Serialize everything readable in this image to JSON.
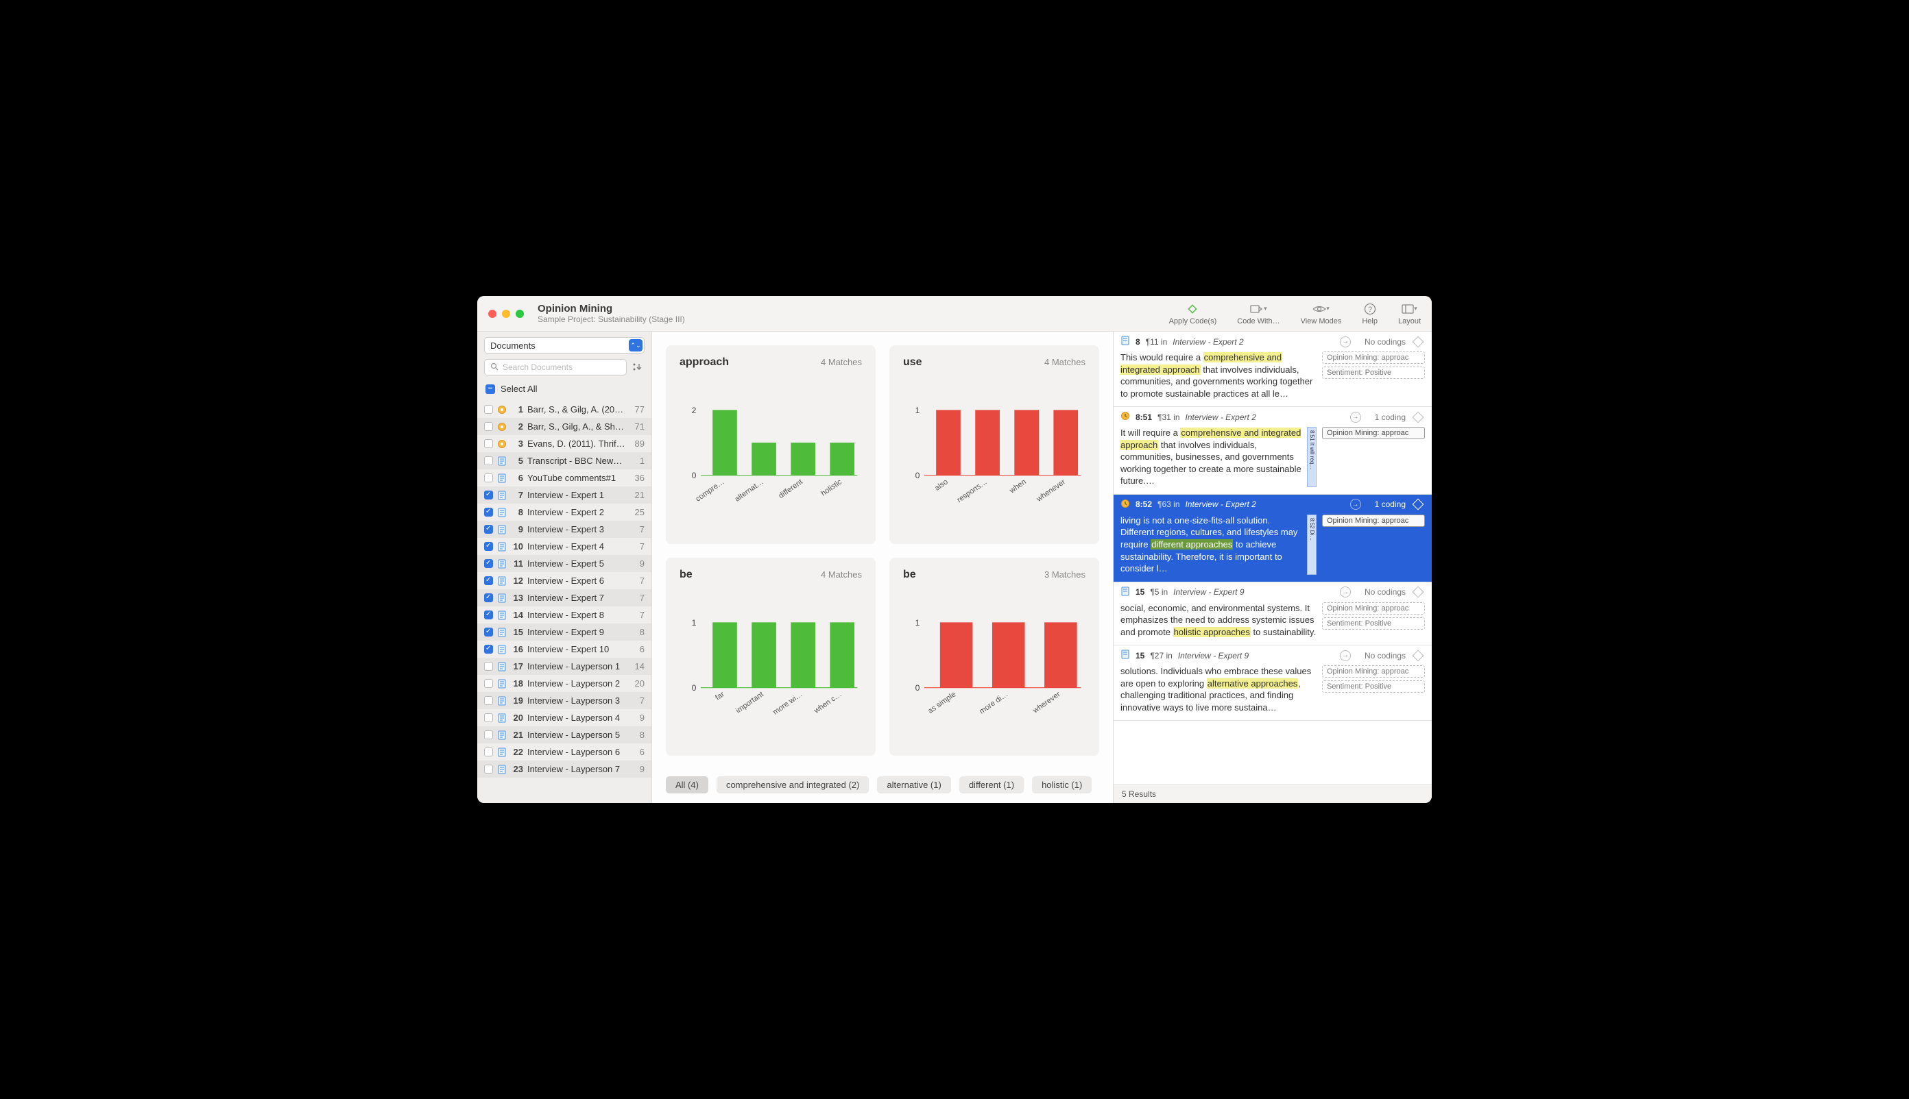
{
  "window": {
    "title": "Opinion Mining",
    "subtitle": "Sample Project: Sustainability (Stage III)"
  },
  "toolbar": {
    "apply": "Apply Code(s)",
    "codewith": "Code With…",
    "viewmodes": "View Modes",
    "help": "Help",
    "layout": "Layout"
  },
  "sidebar": {
    "selector": "Documents",
    "search_placeholder": "Search Documents",
    "select_all": "Select All",
    "docs": [
      {
        "n": "1",
        "name": "Barr, S., & Gilg, A. (200…",
        "count": "77",
        "checked": false,
        "icon": "ref"
      },
      {
        "n": "2",
        "name": "Barr, S., Gilg, A., & Shaw…",
        "count": "71",
        "checked": false,
        "icon": "ref"
      },
      {
        "n": "3",
        "name": "Evans, D. (2011). Thrifty,…",
        "count": "89",
        "checked": false,
        "icon": "ref"
      },
      {
        "n": "5",
        "name": "Transcript - BBC News. (…",
        "count": "1",
        "checked": false,
        "icon": "doc"
      },
      {
        "n": "6",
        "name": "YouTube comments#1",
        "count": "36",
        "checked": false,
        "icon": "doc"
      },
      {
        "n": "7",
        "name": "Interview - Expert 1",
        "count": "21",
        "checked": true,
        "icon": "doc"
      },
      {
        "n": "8",
        "name": "Interview - Expert 2",
        "count": "25",
        "checked": true,
        "icon": "doc"
      },
      {
        "n": "9",
        "name": "Interview - Expert 3",
        "count": "7",
        "checked": true,
        "icon": "doc"
      },
      {
        "n": "10",
        "name": "Interview - Expert 4",
        "count": "7",
        "checked": true,
        "icon": "doc"
      },
      {
        "n": "11",
        "name": "Interview - Expert 5",
        "count": "9",
        "checked": true,
        "icon": "doc"
      },
      {
        "n": "12",
        "name": "Interview - Expert 6",
        "count": "7",
        "checked": true,
        "icon": "doc"
      },
      {
        "n": "13",
        "name": "Interview - Expert 7",
        "count": "7",
        "checked": true,
        "icon": "doc"
      },
      {
        "n": "14",
        "name": "Interview - Expert 8",
        "count": "7",
        "checked": true,
        "icon": "doc"
      },
      {
        "n": "15",
        "name": "Interview - Expert 9",
        "count": "8",
        "checked": true,
        "icon": "doc"
      },
      {
        "n": "16",
        "name": "Interview - Expert 10",
        "count": "6",
        "checked": true,
        "icon": "doc"
      },
      {
        "n": "17",
        "name": "Interview - Layperson 1",
        "count": "14",
        "checked": false,
        "icon": "doc"
      },
      {
        "n": "18",
        "name": "Interview - Layperson 2",
        "count": "20",
        "checked": false,
        "icon": "doc"
      },
      {
        "n": "19",
        "name": "Interview - Layperson 3",
        "count": "7",
        "checked": false,
        "icon": "doc"
      },
      {
        "n": "20",
        "name": "Interview - Layperson 4",
        "count": "9",
        "checked": false,
        "icon": "doc"
      },
      {
        "n": "21",
        "name": "Interview - Layperson 5",
        "count": "8",
        "checked": false,
        "icon": "doc"
      },
      {
        "n": "22",
        "name": "Interview - Layperson 6",
        "count": "6",
        "checked": false,
        "icon": "doc"
      },
      {
        "n": "23",
        "name": "Interview - Layperson 7",
        "count": "9",
        "checked": false,
        "icon": "doc"
      }
    ]
  },
  "charts": [
    {
      "title": "approach",
      "matches": "4 Matches",
      "type": "bar",
      "categories": [
        "compre…",
        "alternat…",
        "different",
        "holistic"
      ],
      "values": [
        2,
        1,
        1,
        1
      ],
      "ymax": 2,
      "ytick": 2,
      "bar_color": "#4fbb3a",
      "axis_color": "#888",
      "bg": "#f4f2f0"
    },
    {
      "title": "use",
      "matches": "4 Matches",
      "type": "bar",
      "categories": [
        "also",
        "respons…",
        "when",
        "whenever"
      ],
      "values": [
        1,
        1,
        1,
        1
      ],
      "ymax": 1,
      "ytick": 1,
      "bar_color": "#e8493e",
      "axis_color": "#888",
      "bg": "#f4f2f0"
    },
    {
      "title": "be",
      "matches": "4 Matches",
      "type": "bar",
      "categories": [
        "far",
        "important",
        "more wi…",
        "when c…"
      ],
      "values": [
        1,
        1,
        1,
        1
      ],
      "ymax": 1,
      "ytick": 1,
      "bar_color": "#4fbb3a",
      "axis_color": "#888",
      "bg": "#f4f2f0"
    },
    {
      "title": "be",
      "matches": "3 Matches",
      "type": "bar",
      "categories": [
        "as simple",
        "more di…",
        "wherever"
      ],
      "values": [
        1,
        1,
        1
      ],
      "ymax": 1,
      "ytick": 1,
      "bar_color": "#e8493e",
      "axis_color": "#888",
      "bg": "#f4f2f0"
    }
  ],
  "filters": [
    {
      "label": "All (4)",
      "active": true
    },
    {
      "label": "comprehensive and integrated (2)",
      "active": false
    },
    {
      "label": "alternative (1)",
      "active": false
    },
    {
      "label": "different (1)",
      "active": false
    },
    {
      "label": "holistic (1)",
      "active": false
    }
  ],
  "results_footer": "5 Results",
  "results": [
    {
      "icon": "doc",
      "num": "8",
      "para": "¶11 in",
      "src": "Interview - Expert 2",
      "codings": "No codings",
      "selected": false,
      "text_pre": "This would require a ",
      "hl": "comprehensive and integrated approach",
      "text_post": " that involves individuals, communities, and governments working together to promote sustainable practices at all le…",
      "tags": [
        {
          "t": "Opinion Mining: approac",
          "solid": false
        },
        {
          "t": "Sentiment: Positive",
          "solid": false
        }
      ],
      "sidecol": null
    },
    {
      "icon": "clock",
      "num": "8:51",
      "para": "¶31 in",
      "src": "Interview - Expert 2",
      "codings": "1 coding",
      "selected": false,
      "text_pre": " It will require a ",
      "hl": "comprehensive and integrated approach",
      "text_post": " that involves individuals, communities, businesses, and governments working together to create a more sustainable future.…",
      "tags": [
        {
          "t": "Opinion Mining: approac",
          "solid": true
        }
      ],
      "sidecol": "8:51  It will req…"
    },
    {
      "icon": "clock",
      "num": "8:52",
      "para": "¶63 in",
      "src": "Interview - Expert 2",
      "codings": "1 coding",
      "selected": true,
      "text_pre": "living is not a one-size-fits-all solution. Different regions, cultures, and lifestyles may require ",
      "hl": "different approaches",
      "text_post": " to achieve sustainability. Therefore, it is important to consider l…",
      "tags": [
        {
          "t": "Opinion Mining: approac",
          "solid": true
        }
      ],
      "sidecol": "8:52 Di…"
    },
    {
      "icon": "doc",
      "num": "15",
      "para": "¶5 in",
      "src": "Interview - Expert 9",
      "codings": "No codings",
      "selected": false,
      "text_pre": "social, economic, and environmental systems. It emphasizes the need to address systemic issues and promote ",
      "hl": "holistic approaches",
      "text_post": " to sustainability.",
      "tags": [
        {
          "t": "Opinion Mining: approac",
          "solid": false
        },
        {
          "t": "Sentiment: Positive",
          "solid": false
        }
      ],
      "sidecol": null
    },
    {
      "icon": "doc",
      "num": "15",
      "para": "¶27 in",
      "src": "Interview - Expert 9",
      "codings": "No codings",
      "selected": false,
      "text_pre": "solutions. Individuals who embrace these values are open to exploring ",
      "hl": "alternative approaches",
      "text_post": ", challenging traditional practices, and finding innovative ways to live more sustaina…",
      "tags": [
        {
          "t": "Opinion Mining: approac",
          "solid": false
        },
        {
          "t": "Sentiment: Positive",
          "solid": false
        }
      ],
      "sidecol": null
    }
  ]
}
